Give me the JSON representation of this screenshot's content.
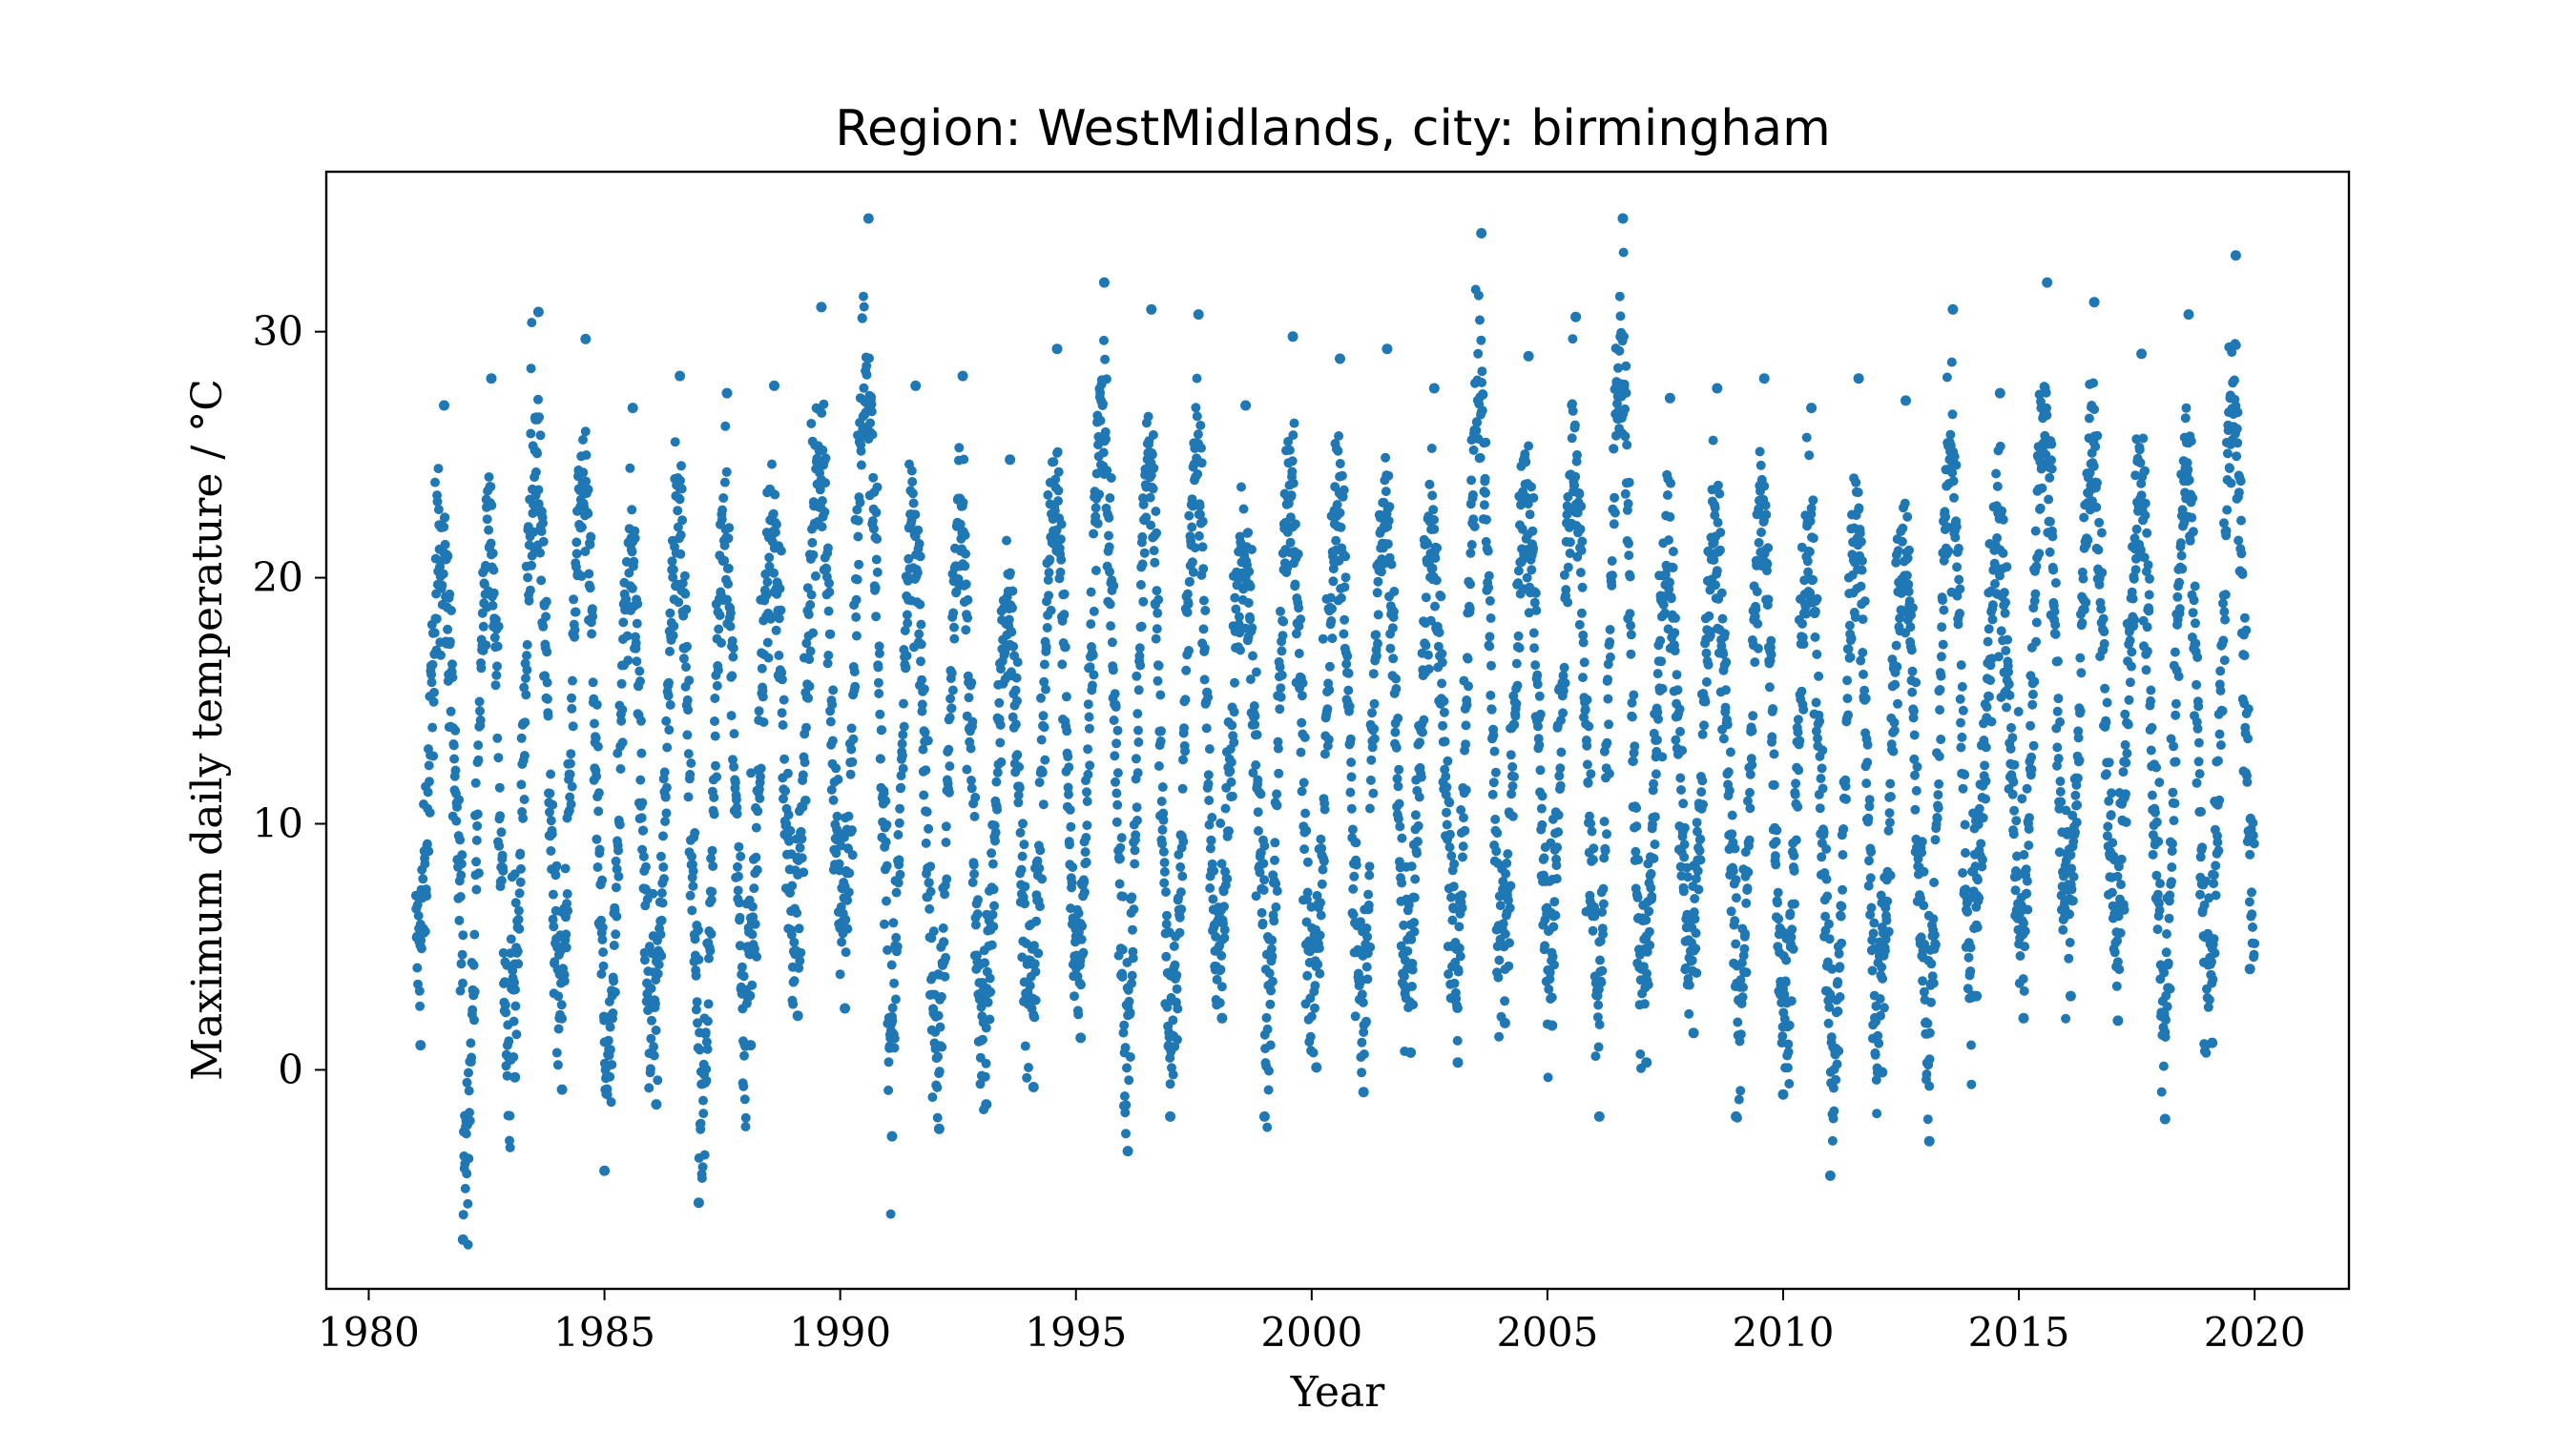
{
  "chart_data": {
    "type": "scatter",
    "title": "Region:  WestMidlands, city:  birmingham",
    "xlabel": "Year",
    "ylabel": "Maximum daily temperature / °C",
    "xlim": [
      1979.1,
      2022.0
    ],
    "ylim": [
      -8.9,
      36.5
    ],
    "x_ticks": [
      1980,
      1985,
      1990,
      1995,
      2000,
      2005,
      2010,
      2015,
      2020
    ],
    "y_ticks": [
      0,
      10,
      20,
      30
    ],
    "grid": false,
    "legend": "none",
    "marker_color": "#1f77b4",
    "x_range_of_data": [
      1981.0,
      2020.0
    ],
    "series": [
      {
        "points": "Daily maximum temperatures 1981–2020; seasonal cycle each year with summer peaks near 27–35 °C and winter lows near 0 to -7 °C",
        "annual_peaks": [
          [
            1981.6,
            27.0
          ],
          [
            1982.6,
            28.1
          ],
          [
            1983.6,
            30.8
          ],
          [
            1984.6,
            29.7
          ],
          [
            1985.6,
            26.9
          ],
          [
            1986.6,
            28.2
          ],
          [
            1987.6,
            27.5
          ],
          [
            1988.6,
            27.8
          ],
          [
            1989.6,
            31.0
          ],
          [
            1990.6,
            34.6
          ],
          [
            1991.6,
            27.8
          ],
          [
            1992.6,
            28.2
          ],
          [
            1993.6,
            24.8
          ],
          [
            1994.6,
            29.3
          ],
          [
            1995.6,
            32.0
          ],
          [
            1996.6,
            30.9
          ],
          [
            1997.6,
            30.7
          ],
          [
            1998.6,
            27.0
          ],
          [
            1999.6,
            29.8
          ],
          [
            2000.6,
            28.9
          ],
          [
            2001.6,
            29.3
          ],
          [
            2002.6,
            27.7
          ],
          [
            2003.6,
            34.0
          ],
          [
            2004.6,
            29.0
          ],
          [
            2005.6,
            30.6
          ],
          [
            2006.6,
            34.6
          ],
          [
            2007.6,
            27.3
          ],
          [
            2008.6,
            27.7
          ],
          [
            2009.6,
            28.1
          ],
          [
            2010.6,
            26.9
          ],
          [
            2011.6,
            28.1
          ],
          [
            2012.6,
            27.2
          ],
          [
            2013.6,
            30.9
          ],
          [
            2014.6,
            27.5
          ],
          [
            2015.6,
            32.0
          ],
          [
            2016.6,
            31.2
          ],
          [
            2017.6,
            29.1
          ],
          [
            2018.6,
            30.7
          ],
          [
            2019.6,
            33.1
          ]
        ],
        "annual_lows": [
          [
            1981.1,
            1.0
          ],
          [
            1982.0,
            -6.9
          ],
          [
            1983.1,
            -0.3
          ],
          [
            1984.1,
            -0.8
          ],
          [
            1985.0,
            -4.1
          ],
          [
            1986.1,
            -1.4
          ],
          [
            1987.0,
            -5.4
          ],
          [
            1988.1,
            1.0
          ],
          [
            1989.1,
            2.2
          ],
          [
            1990.1,
            2.5
          ],
          [
            1991.1,
            -2.7
          ],
          [
            1992.1,
            -2.4
          ],
          [
            1993.1,
            -1.4
          ],
          [
            1994.1,
            -0.7
          ],
          [
            1995.1,
            1.3
          ],
          [
            1996.1,
            -3.3
          ],
          [
            1997.0,
            -1.9
          ],
          [
            1998.1,
            2.1
          ],
          [
            1999.0,
            -1.9
          ],
          [
            2000.1,
            0.1
          ],
          [
            2001.1,
            -0.9
          ],
          [
            2002.1,
            0.7
          ],
          [
            2003.1,
            0.3
          ],
          [
            2004.1,
            1.9
          ],
          [
            2005.1,
            1.8
          ],
          [
            2006.1,
            -1.9
          ],
          [
            2007.1,
            0.3
          ],
          [
            2008.1,
            1.5
          ],
          [
            2009.0,
            -1.9
          ],
          [
            2010.0,
            -1.0
          ],
          [
            2011.0,
            -4.3
          ],
          [
            2012.1,
            -0.1
          ],
          [
            2013.1,
            -2.9
          ],
          [
            2014.1,
            3.0
          ],
          [
            2015.1,
            2.1
          ],
          [
            2016.1,
            3.0
          ],
          [
            2017.1,
            2.0
          ],
          [
            2018.1,
            -2.0
          ],
          [
            2019.1,
            1.1
          ],
          [
            2019.9,
            4.1
          ]
        ]
      }
    ]
  }
}
